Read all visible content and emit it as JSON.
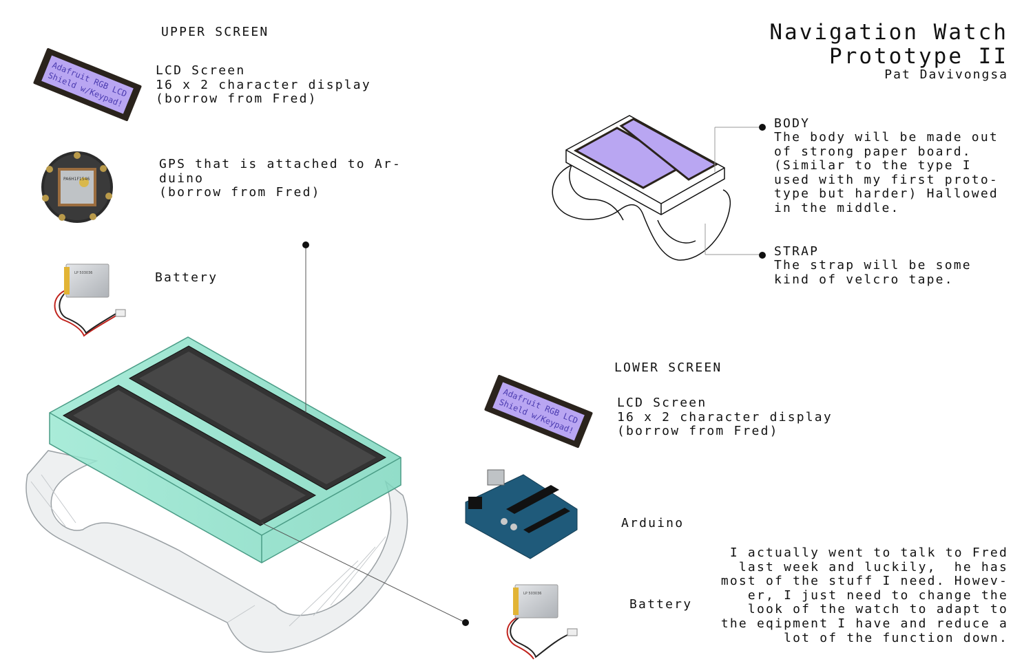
{
  "header": {
    "title_line1": "Navigation Watch",
    "title_line2": "Prototype II",
    "author": "Pat Davivongsa"
  },
  "upper": {
    "heading": "UPPER SCREEN",
    "lcd": "LCD Screen\n16 x 2 character display\n(borrow from Fred)",
    "gps": "GPS that is attached to Ar-\nduino\n(borrow from Fred)",
    "battery": "Battery"
  },
  "body": {
    "heading": "BODY",
    "text": "The body will be made out\nof strong paper board.\n(Similar to the type I\nused with my first proto-\ntype but harder) Hallowed\nin the middle."
  },
  "strap": {
    "heading": "STRAP",
    "text": "The strap will be some\nkind of velcro tape."
  },
  "lower": {
    "heading": "LOWER SCREEN",
    "lcd": "LCD Screen\n16 x 2 character display\n(borrow from Fred)",
    "arduino": "Arduino",
    "battery": "Battery"
  },
  "note": "I actually went to talk to Fred\nlast week and luckily,  he has\nmost of the stuff I need. Howev-\ner, I just need to change the\nlook of the watch to adapt to\nthe eqipment I have and reduce a\nlot of the function down.",
  "lcd_display": {
    "line1": "Adafruit RGB LCD",
    "line2": "Shield w/Keypad!"
  },
  "gps_chip_text": "PA6H1F1546",
  "battery_label_text": "LP 503036",
  "colors": {
    "lcd_screen": "#b9a6f2",
    "lcd_frame": "#2a231c",
    "body_teal": "#8fe3cc",
    "pcb_blue": "#1f5a7a",
    "battery_silver": "#c9ccd0"
  }
}
